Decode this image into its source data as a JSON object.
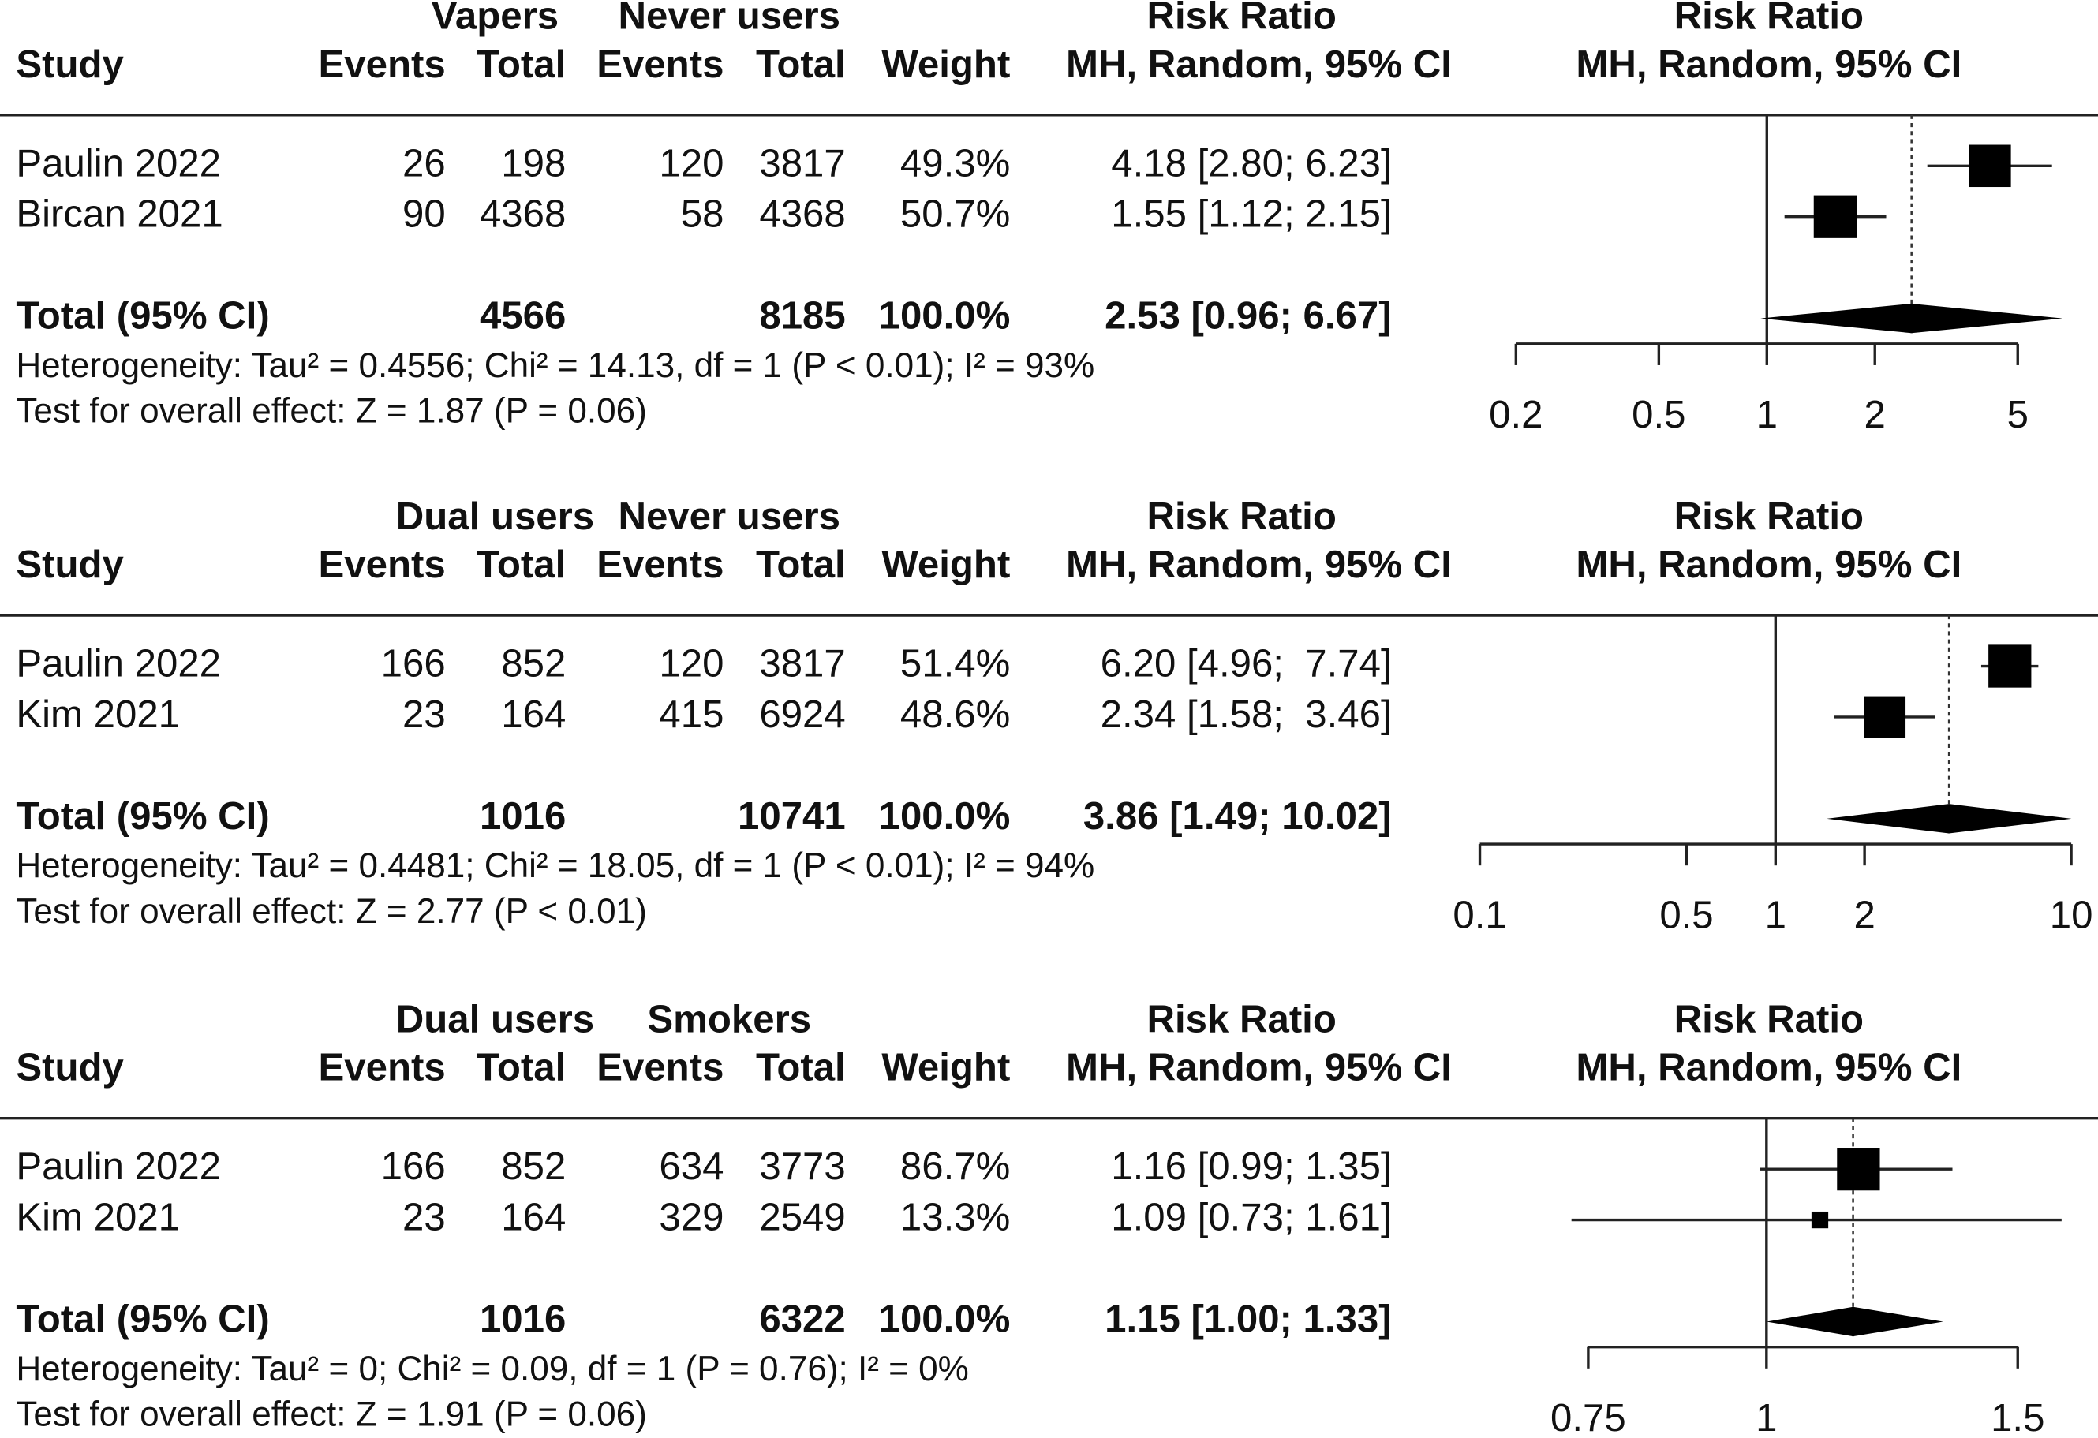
{
  "chart_data": [
    {
      "type": "forest",
      "group1": "Vapers",
      "group2": "Never users",
      "col_study": "Study",
      "col_events": "Events",
      "col_total": "Total",
      "col_weight": "Weight",
      "col_rr": "Risk Ratio",
      "col_method": "MH, Random, 95% CI",
      "studies": [
        {
          "study": "Paulin 2022",
          "events1": 26,
          "total1": 198,
          "events2": 120,
          "total2": 3817,
          "weight": 49.3,
          "weight_label": "49.3%",
          "rr": 4.18,
          "lower": 2.8,
          "upper": 6.23,
          "ci_label": "4.18 [2.80; 6.23]"
        },
        {
          "study": "Bircan 2021",
          "events1": 90,
          "total1": 4368,
          "events2": 58,
          "total2": 4368,
          "weight": 50.7,
          "weight_label": "50.7%",
          "rr": 1.55,
          "lower": 1.12,
          "upper": 2.15,
          "ci_label": "1.55 [1.12; 2.15]"
        }
      ],
      "total": {
        "label": "Total (95% CI)",
        "total1": 4566,
        "total2": 8185,
        "weight": 100,
        "weight_label": "100.0%",
        "rr": 2.53,
        "lower": 0.96,
        "upper": 6.67,
        "ci_label": "2.53 [0.96; 6.67]"
      },
      "heterogeneity": "Heterogeneity: Tau² = 0.4556; Chi² = 14.13, df = 1 (P < 0.01); I² = 93%",
      "overall_effect": "Test for overall effect: Z = 1.87 (P = 0.06)",
      "log_scale": true,
      "xlim": [
        0.2,
        5
      ],
      "xticks": [
        0.2,
        0.5,
        1,
        2,
        5
      ]
    },
    {
      "type": "forest",
      "group1": "Dual users",
      "group2": "Never users",
      "col_study": "Study",
      "col_events": "Events",
      "col_total": "Total",
      "col_weight": "Weight",
      "col_rr": "Risk Ratio",
      "col_method": "MH, Random, 95% CI",
      "studies": [
        {
          "study": "Paulin 2022",
          "events1": 166,
          "total1": 852,
          "events2": 120,
          "total2": 3817,
          "weight": 51.4,
          "weight_label": "51.4%",
          "rr": 6.2,
          "lower": 4.96,
          "upper": 7.74,
          "ci_label": "6.20 [4.96;  7.74]"
        },
        {
          "study": "Kim 2021",
          "events1": 23,
          "total1": 164,
          "events2": 415,
          "total2": 6924,
          "weight": 48.6,
          "weight_label": "48.6%",
          "rr": 2.34,
          "lower": 1.58,
          "upper": 3.46,
          "ci_label": "2.34 [1.58;  3.46]"
        }
      ],
      "total": {
        "label": "Total (95% CI)",
        "total1": 1016,
        "total2": 10741,
        "weight": 100,
        "weight_label": "100.0%",
        "rr": 3.86,
        "lower": 1.49,
        "upper": 10.02,
        "ci_label": "3.86 [1.49; 10.02]"
      },
      "heterogeneity": "Heterogeneity: Tau² = 0.4481; Chi² = 18.05, df = 1 (P < 0.01); I² = 94%",
      "overall_effect": "Test for overall effect: Z = 2.77 (P < 0.01)",
      "log_scale": true,
      "xlim": [
        0.1,
        10
      ],
      "xticks": [
        0.1,
        0.5,
        1,
        2,
        10
      ]
    },
    {
      "type": "forest",
      "group1": "Dual users",
      "group2": "Smokers",
      "col_study": "Study",
      "col_events": "Events",
      "col_total": "Total",
      "col_weight": "Weight",
      "col_rr": "Risk Ratio",
      "col_method": "MH, Random, 95% CI",
      "studies": [
        {
          "study": "Paulin 2022",
          "events1": 166,
          "total1": 852,
          "events2": 634,
          "total2": 3773,
          "weight": 86.7,
          "weight_label": "86.7%",
          "rr": 1.16,
          "lower": 0.99,
          "upper": 1.35,
          "ci_label": "1.16 [0.99; 1.35]"
        },
        {
          "study": "Kim 2021",
          "events1": 23,
          "total1": 164,
          "events2": 329,
          "total2": 2549,
          "weight": 13.3,
          "weight_label": "13.3%",
          "rr": 1.09,
          "lower": 0.73,
          "upper": 1.61,
          "ci_label": "1.09 [0.73; 1.61]"
        }
      ],
      "total": {
        "label": "Total (95% CI)",
        "total1": 1016,
        "total2": 6322,
        "weight": 100,
        "weight_label": "100.0%",
        "rr": 1.15,
        "lower": 1.0,
        "upper": 1.33,
        "ci_label": "1.15 [1.00; 1.33]"
      },
      "heterogeneity": "Heterogeneity: Tau² = 0; Chi² = 0.09, df = 1 (P = 0.76); I² = 0%",
      "overall_effect": "Test for overall effect: Z = 1.91 (P = 0.06)",
      "log_scale": true,
      "xlim": [
        0.75,
        1.5
      ],
      "xticks": [
        0.75,
        1,
        1.5
      ]
    }
  ]
}
